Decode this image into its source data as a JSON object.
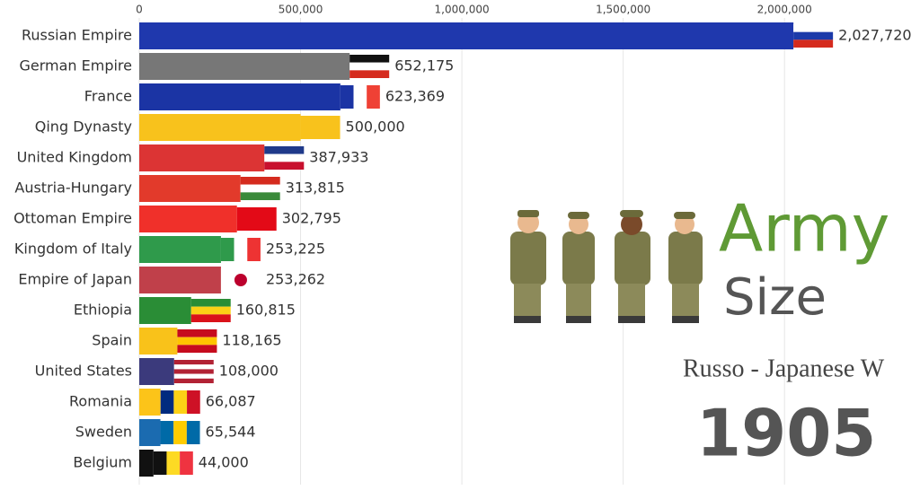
{
  "chart_data": {
    "type": "bar",
    "orientation": "horizontal",
    "categories": [
      "Russian Empire",
      "German Empire",
      "France",
      "Qing Dynasty",
      "United Kingdom",
      "Austria-Hungary",
      "Ottoman Empire",
      "Kingdom of Italy",
      "Empire of Japan",
      "Ethiopia",
      "Spain",
      "United States",
      "Romania",
      "Sweden",
      "Belgium"
    ],
    "values": [
      2027720,
      652175,
      623369,
      500000,
      387933,
      313815,
      302795,
      253225,
      253262,
      160815,
      118165,
      108000,
      66087,
      65544,
      44000
    ],
    "value_labels": [
      "2,027,720",
      "652,175",
      "623,369",
      "500,000",
      "387,933",
      "313,815",
      "302,795",
      "253,225",
      "253,262",
      "160,815",
      "118,165",
      "108,000",
      "66,087",
      "65,544",
      "44,000"
    ],
    "colors": [
      "#1f38ad",
      "#777777",
      "#1b34a4",
      "#f8c21c",
      "#dc3434",
      "#e23a2b",
      "#f0302a",
      "#2f9a4b",
      "#c0404a",
      "#2a8d36",
      "#f9c21a",
      "#3b3a7c",
      "#fcc419",
      "#1b6bb0",
      "#111111"
    ],
    "xlim": [
      0,
      2420000
    ],
    "xticks": [
      0,
      {
        "value": 500000,
        "label": "500,000"
      },
      {
        "value": 1000000,
        "label": "1,000,000"
      },
      {
        "value": 1500000,
        "label": "1,500,000"
      },
      {
        "value": 2000000,
        "label": "2,000,000"
      }
    ],
    "grid": true,
    "heading": "Army",
    "subheading": "Size",
    "event": "Russo - Japanese W",
    "year": "1905"
  }
}
